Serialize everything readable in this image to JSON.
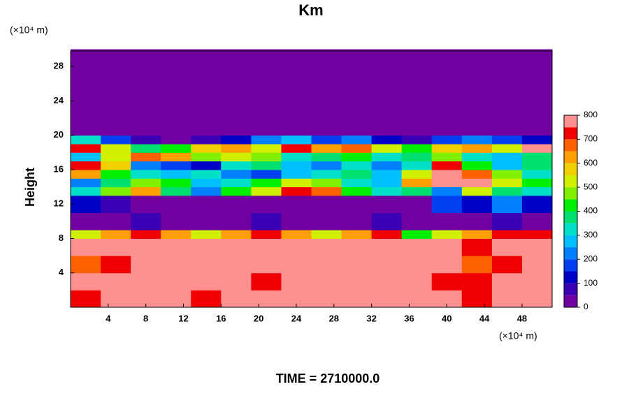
{
  "chart_data": {
    "type": "contour",
    "title": "Km",
    "y_unit": "(×10⁴ m)",
    "x_unit": "(×10⁴ m)",
    "ylabel": "Height",
    "footer": "TIME = 2710000.0",
    "xlim": [
      0,
      51.2
    ],
    "ylim": [
      0,
      29.8
    ],
    "xticks": [
      4,
      8,
      12,
      16,
      20,
      24,
      28,
      32,
      36,
      40,
      44,
      48
    ],
    "yticks": [
      4,
      8,
      12,
      16,
      20,
      24,
      28
    ],
    "x_edges": [
      0,
      3.2,
      6.4,
      9.6,
      12.8,
      16,
      19.2,
      22.4,
      25.6,
      28.8,
      32,
      35.2,
      38.4,
      41.6,
      44.8,
      48,
      51.2
    ],
    "y_edges": [
      0,
      2,
      4,
      6,
      8,
      9,
      11,
      13,
      14,
      15,
      16,
      17,
      18,
      19,
      20,
      30
    ],
    "values": [
      [
        700,
        800,
        800,
        800,
        700,
        800,
        800,
        800,
        800,
        800,
        800,
        800,
        800,
        700,
        800,
        800
      ],
      [
        800,
        800,
        800,
        800,
        800,
        800,
        700,
        800,
        800,
        800,
        800,
        800,
        700,
        700,
        800,
        800
      ],
      [
        650,
        700,
        800,
        800,
        800,
        800,
        800,
        750,
        800,
        800,
        800,
        800,
        800,
        650,
        700,
        800
      ],
      [
        800,
        800,
        800,
        800,
        800,
        800,
        800,
        750,
        800,
        800,
        800,
        800,
        800,
        700,
        800,
        800
      ],
      [
        500,
        600,
        700,
        600,
        500,
        600,
        700,
        600,
        500,
        600,
        700,
        400,
        500,
        600,
        700,
        700
      ],
      [
        0,
        0,
        50,
        0,
        0,
        0,
        50,
        0,
        0,
        0,
        50,
        0,
        0,
        0,
        50,
        0
      ],
      [
        100,
        50,
        0,
        0,
        0,
        0,
        0,
        0,
        0,
        0,
        0,
        0,
        150,
        100,
        200,
        100
      ],
      [
        300,
        450,
        600,
        350,
        200,
        400,
        500,
        700,
        650,
        400,
        300,
        350,
        200,
        500,
        350,
        300
      ],
      [
        200,
        350,
        450,
        400,
        250,
        300,
        400,
        500,
        450,
        300,
        250,
        600,
        800,
        750,
        500,
        400
      ],
      [
        600,
        400,
        300,
        250,
        300,
        200,
        150,
        250,
        300,
        350,
        250,
        500,
        800,
        650,
        450,
        300
      ],
      [
        700,
        550,
        200,
        150,
        100,
        300,
        350,
        250,
        200,
        300,
        200,
        300,
        700,
        400,
        250,
        350
      ],
      [
        250,
        500,
        650,
        600,
        450,
        500,
        450,
        300,
        350,
        400,
        300,
        350,
        450,
        300,
        250,
        350
      ],
      [
        700,
        500,
        350,
        400,
        550,
        600,
        500,
        700,
        600,
        650,
        500,
        400,
        550,
        600,
        500,
        750
      ],
      [
        300,
        150,
        50,
        0,
        50,
        100,
        200,
        250,
        150,
        200,
        100,
        50,
        150,
        200,
        150,
        100
      ],
      [
        0,
        0,
        0,
        0,
        0,
        0,
        0,
        0,
        0,
        0,
        0,
        0,
        0,
        0,
        0,
        0
      ]
    ],
    "colorbar": {
      "levels": [
        0,
        50,
        100,
        150,
        200,
        250,
        300,
        350,
        400,
        450,
        500,
        550,
        600,
        650,
        700,
        750,
        800
      ],
      "colors": [
        "#7000a0",
        "#3c00b4",
        "#0000c8",
        "#0040f0",
        "#0080ff",
        "#00c0ff",
        "#00e0c8",
        "#00e070",
        "#00f000",
        "#80f000",
        "#d0f000",
        "#f0d000",
        "#ffa000",
        "#ff6000",
        "#f00000",
        "#ff9090"
      ],
      "ticks": [
        0,
        100,
        200,
        300,
        400,
        500,
        600,
        700,
        800
      ]
    }
  }
}
